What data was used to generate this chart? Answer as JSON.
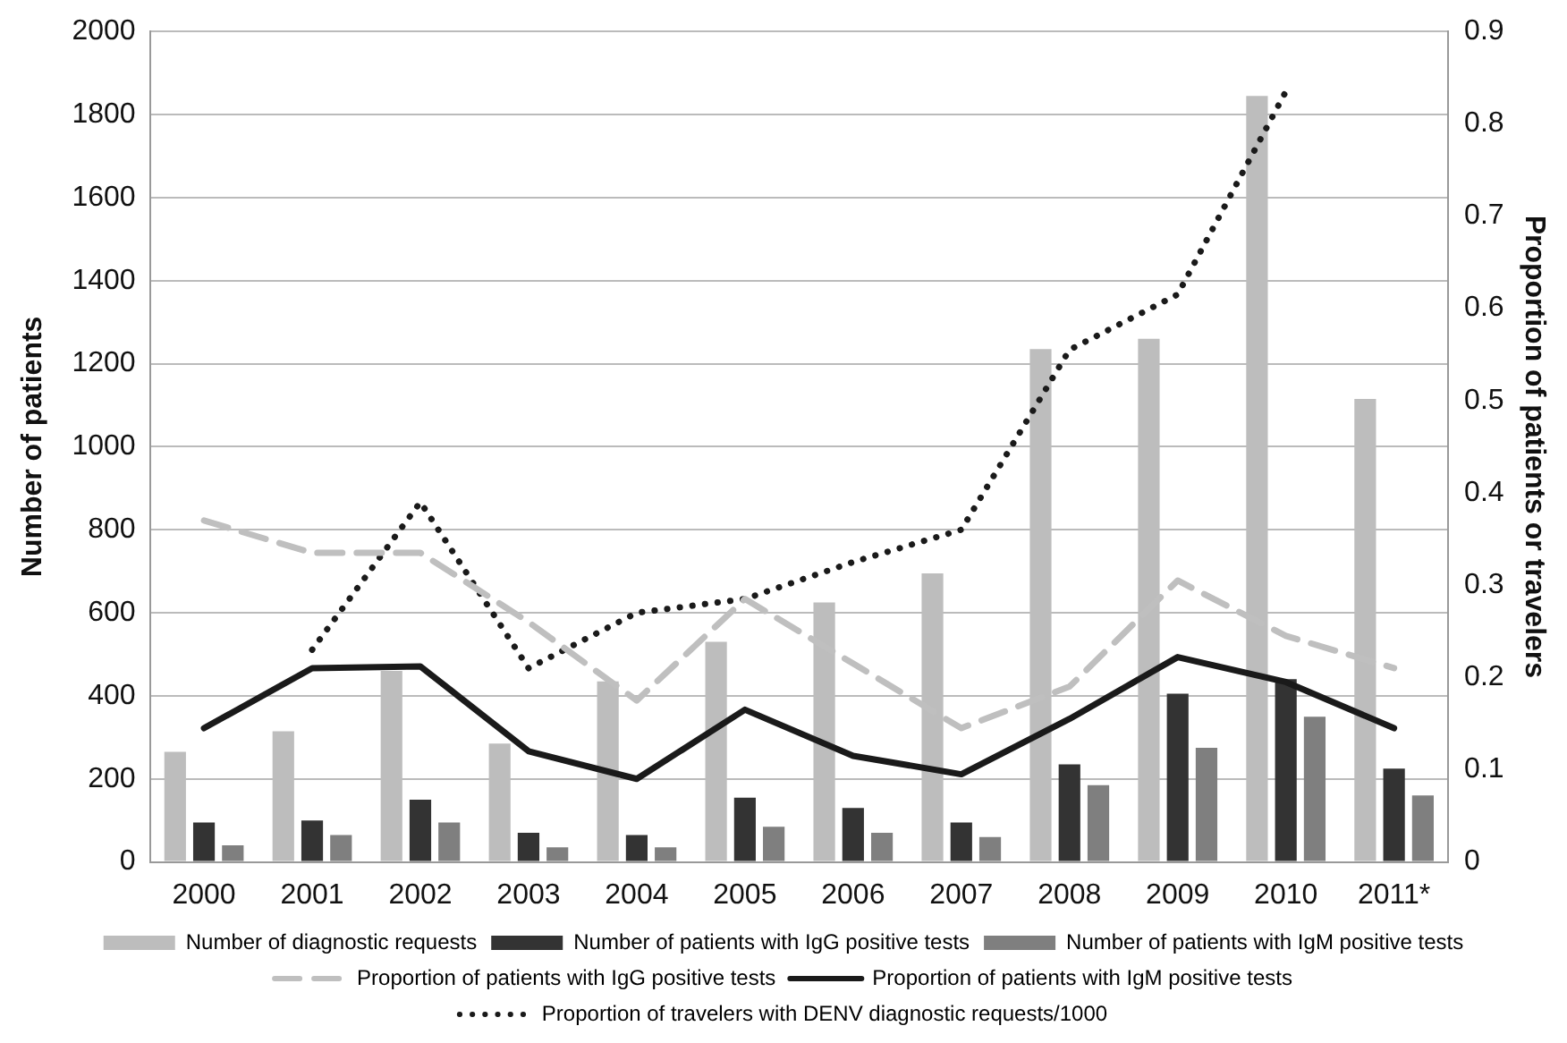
{
  "chart_data": {
    "type": "bar",
    "categories": [
      "2000",
      "2001",
      "2002",
      "2003",
      "2004",
      "2005",
      "2006",
      "2007",
      "2008",
      "2009",
      "2010",
      "2011*"
    ],
    "ylabel": "Number of patients",
    "y2label": "Proportion of patients or travelers",
    "ylim": [
      0,
      2000
    ],
    "yticks": [
      0,
      200,
      400,
      600,
      800,
      1000,
      1200,
      1400,
      1600,
      1800,
      2000
    ],
    "y2lim": [
      0,
      0.9
    ],
    "y2ticks": [
      0,
      0.1,
      0.2,
      0.3,
      0.4,
      0.5,
      0.6,
      0.7,
      0.8,
      0.9
    ],
    "grid": "y",
    "legend": "bottom",
    "series": [
      {
        "name": "Number of diagnostic requests",
        "color": "#bdbdbd",
        "values": [
          265,
          315,
          460,
          285,
          435,
          530,
          625,
          695,
          1235,
          1260,
          1845,
          1115
        ]
      },
      {
        "name": "Number of patients with IgG positive tests",
        "color": "#333333",
        "values": [
          95,
          100,
          150,
          70,
          65,
          155,
          130,
          95,
          235,
          405,
          440,
          225
        ]
      },
      {
        "name": "Number of patients with IgM positive tests",
        "color": "#7f7f7f",
        "values": [
          40,
          65,
          95,
          35,
          35,
          85,
          70,
          60,
          185,
          275,
          350,
          160
        ]
      },
      {
        "name": "Proportion of patients with IgG positive tests",
        "type": "line",
        "axis": "y2",
        "color": "#bfbfbf",
        "line_style": "dashed",
        "values": [
          0.37,
          0.335,
          0.335,
          0.26,
          0.175,
          0.285,
          0.215,
          0.145,
          0.19,
          0.305,
          0.245,
          0.21
        ]
      },
      {
        "name": "Proportion of patients with IgM positive tests",
        "type": "line",
        "axis": "y2",
        "color": "#1a1a1a",
        "line_style": "solid",
        "values": [
          0.145,
          0.21,
          0.212,
          0.12,
          0.09,
          0.165,
          0.115,
          0.095,
          0.155,
          0.222,
          0.195,
          0.145
        ]
      },
      {
        "name": "Proportion of travelers with DENV diagnostic requests/1000",
        "type": "line",
        "axis": "y2",
        "color": "#1a1a1a",
        "line_style": "dotted",
        "values": [
          null,
          0.23,
          0.39,
          0.21,
          0.27,
          0.285,
          0.325,
          0.36,
          0.555,
          0.615,
          0.835,
          null
        ]
      }
    ]
  }
}
